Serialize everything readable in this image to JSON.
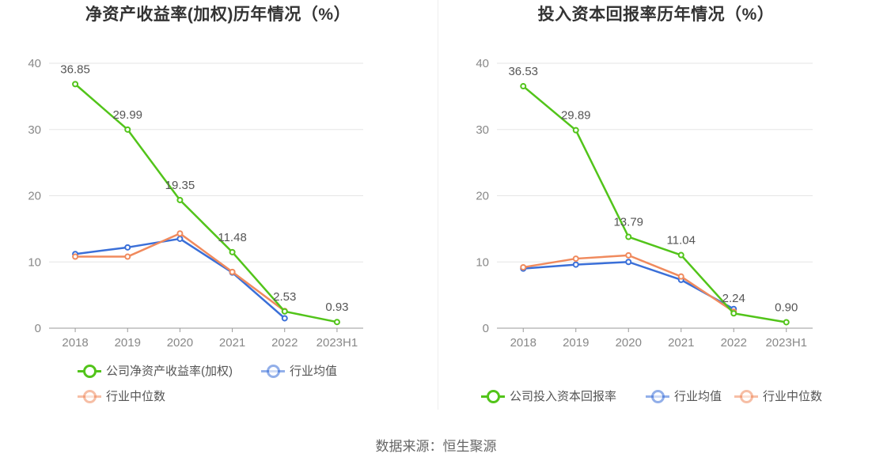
{
  "source_text": "数据来源：恒生聚源",
  "colors": {
    "company": "#52c41a",
    "avg": "#3a6fd8",
    "median": "#f08a5d",
    "grid": "#e6e6e6",
    "axis": "#999999"
  },
  "chart_data": [
    {
      "type": "line",
      "title": "净资产收益率(加权)历年情况（%）",
      "categories": [
        "2018",
        "2019",
        "2020",
        "2021",
        "2022",
        "2023H1"
      ],
      "ylim": [
        0,
        40
      ],
      "yticks": [
        "0",
        "10",
        "20",
        "30",
        "40"
      ],
      "grid": true,
      "legend_position": "bottom",
      "series": [
        {
          "name": "公司净资产收益率(加权)",
          "key": "company",
          "values": [
            36.85,
            29.99,
            19.35,
            11.48,
            2.53,
            0.93
          ],
          "labels": [
            "36.85",
            "29.99",
            "19.35",
            "11.48",
            "2.53",
            "0.93"
          ]
        },
        {
          "name": "行业均值",
          "key": "avg",
          "values": [
            11.2,
            12.2,
            13.5,
            8.4,
            1.5,
            null
          ]
        },
        {
          "name": "行业中位数",
          "key": "median",
          "values": [
            10.8,
            10.8,
            14.3,
            8.5,
            2.6,
            null
          ]
        }
      ]
    },
    {
      "type": "line",
      "title": "投入资本回报率历年情况（%）",
      "categories": [
        "2018",
        "2019",
        "2020",
        "2021",
        "2022",
        "2023H1"
      ],
      "ylim": [
        0,
        40
      ],
      "yticks": [
        "0",
        "10",
        "20",
        "30",
        "40"
      ],
      "grid": true,
      "legend_position": "bottom",
      "series": [
        {
          "name": "公司投入资本回报率",
          "key": "company",
          "values": [
            36.53,
            29.89,
            13.79,
            11.04,
            2.24,
            0.9
          ],
          "labels": [
            "36.53",
            "29.89",
            "13.79",
            "11.04",
            "2.24",
            "0.90"
          ]
        },
        {
          "name": "行业均值",
          "key": "avg",
          "values": [
            9.0,
            9.6,
            10.0,
            7.3,
            2.9,
            null
          ]
        },
        {
          "name": "行业中位数",
          "key": "median",
          "values": [
            9.2,
            10.5,
            11.0,
            7.8,
            2.5,
            null
          ]
        }
      ]
    }
  ]
}
